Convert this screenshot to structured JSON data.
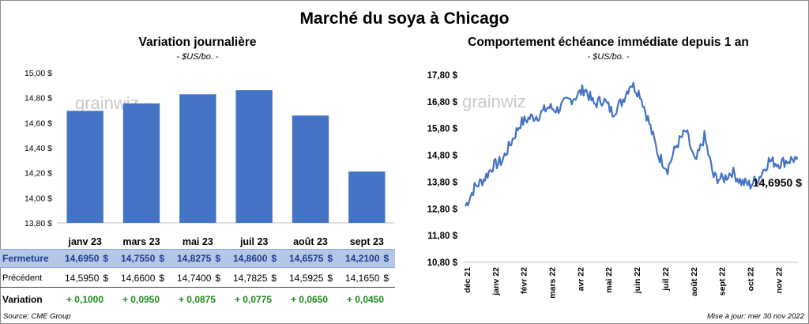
{
  "title": "Marché du soya à Chicago",
  "left": {
    "subtitle": "Variation journalière",
    "unit": "- $US/bo. -",
    "watermark": "grainwiz"
  },
  "right": {
    "subtitle": "Comportement échéance immédiate depuis 1 an",
    "unit": "- $US/bo. -",
    "watermark": "grainwiz",
    "last_value_label": "14,6950 $"
  },
  "table": {
    "rows": [
      {
        "label": "Fermeture",
        "values": [
          "14,6950",
          "14,7550",
          "14,8275",
          "14,8600",
          "14,6575",
          "14,2100"
        ],
        "currency": "$"
      },
      {
        "label": "Précédent",
        "values": [
          "14,5950",
          "14,6600",
          "14,7400",
          "14,7825",
          "14,5925",
          "14,1650"
        ],
        "currency": "$"
      },
      {
        "label": "Variation",
        "values": [
          "+ 0,1000",
          "+ 0,0950",
          "+ 0,0875",
          "+ 0,0775",
          "+ 0,0650",
          "+ 0,0450"
        ]
      }
    ]
  },
  "footer": {
    "source": "Source: CME Group",
    "updated": "Mise à jour: mer 30 nov 2022"
  },
  "colors": {
    "bar": "#4472c4",
    "line": "#4472c4",
    "positive": "#1e8a1e",
    "header_band": "#b4c7e7"
  },
  "chart_data": [
    {
      "type": "bar",
      "categories": [
        "janv 23",
        "mars 23",
        "mai 23",
        "juil 23",
        "août 23",
        "sept 23"
      ],
      "values": [
        14.695,
        14.755,
        14.8275,
        14.86,
        14.6575,
        14.21
      ],
      "ylim": [
        13.8,
        15.0
      ],
      "yticks": [
        "13,80 $",
        "14,00 $",
        "14,20 $",
        "14,40 $",
        "14,60 $",
        "14,80 $",
        "15,00 $"
      ],
      "ytick_values": [
        13.8,
        14.0,
        14.2,
        14.4,
        14.6,
        14.8,
        15.0
      ],
      "grid": false
    },
    {
      "type": "line",
      "x_labels": [
        "déc 21",
        "janv 22",
        "févr 22",
        "mars 22",
        "avr 22",
        "mai 22",
        "juin 22",
        "juil 22",
        "août 22",
        "sept 22",
        "oct 22",
        "nov 22"
      ],
      "ylim": [
        10.8,
        17.8
      ],
      "yticks": [
        "10,80 $",
        "11,80 $",
        "12,80 $",
        "13,80 $",
        "14,80 $",
        "15,80 $",
        "16,80 $",
        "17,80 $"
      ],
      "ytick_values": [
        10.8,
        11.8,
        12.8,
        13.8,
        14.8,
        15.8,
        16.8,
        17.8
      ],
      "monthly_points": [
        12.9,
        13.6,
        13.9,
        14.4,
        14.6,
        15.3,
        16.0,
        16.2,
        16.3,
        16.6,
        16.5,
        16.8,
        17.0,
        17.3,
        16.7,
        16.9,
        16.4,
        16.8,
        17.5,
        17.1,
        16.0,
        14.8,
        14.3,
        15.2,
        15.7,
        14.5,
        15.5,
        14.0,
        13.9,
        14.2,
        13.8,
        13.7,
        14.0,
        14.6,
        14.5,
        14.6,
        14.695
      ],
      "last_value": 14.695,
      "grid": false
    }
  ]
}
